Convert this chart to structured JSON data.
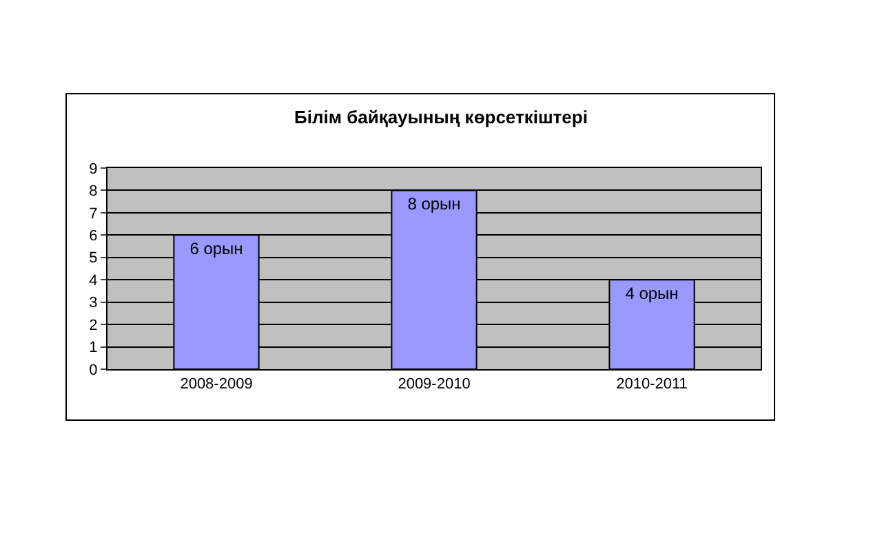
{
  "chart_data": {
    "type": "bar",
    "title": "Білім байқауының көрсеткіштері",
    "categories": [
      "2008-2009",
      "2009-2010",
      "2010-2011"
    ],
    "values": [
      6,
      8,
      4
    ],
    "value_labels": [
      "6 орын",
      "8 орын",
      "4 орын"
    ],
    "color": "#9999ff",
    "ylim": [
      0,
      9
    ],
    "yticks": [
      0,
      1,
      2,
      3,
      4,
      5,
      6,
      7,
      8,
      9
    ],
    "grid": "y",
    "legend": false
  }
}
